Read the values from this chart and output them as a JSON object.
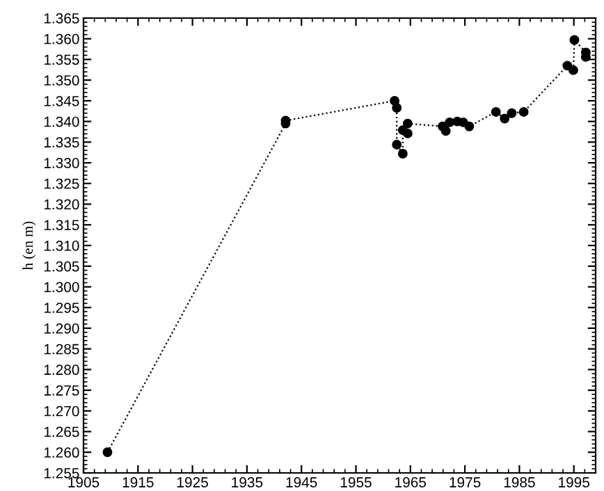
{
  "chart_data": {
    "type": "line",
    "ylabel": "h (en m)",
    "x": [
      1909.4,
      1942.1,
      1942.1,
      1962.1,
      1962.5,
      1962.5,
      1963.6,
      1963.6,
      1964.5,
      1964.5,
      1970.9,
      1971.5,
      1972.2,
      1973.6,
      1974.7,
      1975.8,
      1980.7,
      1982.3,
      1983.6,
      1985.8,
      1993.8,
      1994.9,
      1995.1,
      1997.2,
      1997.2
    ],
    "series": [
      {
        "color": "#000000",
        "values": [
          1.26,
          1.3395,
          1.3402,
          1.345,
          1.3433,
          1.3344,
          1.3322,
          1.3379,
          1.3371,
          1.3395,
          1.3388,
          1.3377,
          1.3398,
          1.34,
          1.3398,
          1.3388,
          1.3423,
          1.3407,
          1.342,
          1.3423,
          1.3535,
          1.3524,
          1.3597,
          1.3567,
          1.3556
        ]
      }
    ],
    "marker": "circle",
    "line_style": "dotted",
    "grid": false,
    "legend": false,
    "xlim": [
      1905,
      1999
    ],
    "xticks": [
      1905,
      1915,
      1925,
      1935,
      1945,
      1955,
      1965,
      1975,
      1985,
      1995
    ],
    "ylim": [
      1.255,
      1.365
    ],
    "yticks": [
      {
        "value": 1.255,
        "label": "1.255"
      },
      {
        "value": 1.26,
        "label": "1.260"
      },
      {
        "value": 1.265,
        "label": "1.265"
      },
      {
        "value": 1.27,
        "label": "1.270"
      },
      {
        "value": 1.275,
        "label": "1.275"
      },
      {
        "value": 1.28,
        "label": "1.280"
      },
      {
        "value": 1.285,
        "label": "1.285"
      },
      {
        "value": 1.29,
        "label": "1.290"
      },
      {
        "value": 1.295,
        "label": "1.295"
      },
      {
        "value": 1.3,
        "label": "1.300"
      },
      {
        "value": 1.305,
        "label": "1.305"
      },
      {
        "value": 1.31,
        "label": "1.310"
      },
      {
        "value": 1.315,
        "label": "1.315"
      },
      {
        "value": 1.32,
        "label": "1.320"
      },
      {
        "value": 1.325,
        "label": "1.325"
      },
      {
        "value": 1.33,
        "label": "1.330"
      },
      {
        "value": 1.335,
        "label": "1.335"
      },
      {
        "value": 1.34,
        "label": "1.340"
      },
      {
        "value": 1.345,
        "label": "1.345"
      },
      {
        "value": 1.35,
        "label": "1.350"
      },
      {
        "value": 1.355,
        "label": "1.355"
      },
      {
        "value": 1.36,
        "label": "1.360"
      },
      {
        "value": 1.365,
        "label": "1.365"
      }
    ]
  }
}
